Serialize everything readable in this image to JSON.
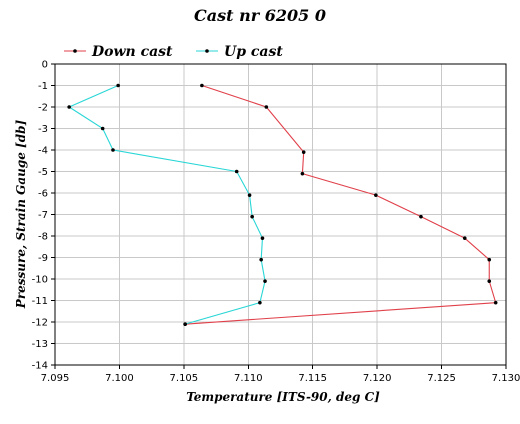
{
  "chart_data": {
    "type": "line",
    "title": "Cast nr 6205 0",
    "xlabel": "Temperature [ITS-90, deg C]",
    "ylabel": "Pressure, Strain Gauge [db]",
    "xlim": [
      7.095,
      7.13
    ],
    "ylim": [
      -14,
      0
    ],
    "x_ticks": [
      "7.095",
      "7.100",
      "7.105",
      "7.110",
      "7.115",
      "7.120",
      "7.125",
      "7.130"
    ],
    "y_ticks": [
      "0",
      "-1",
      "-2",
      "-3",
      "-4",
      "-5",
      "-6",
      "-7",
      "-8",
      "-9",
      "-10",
      "-11",
      "-12",
      "-13",
      "-14"
    ],
    "grid": true,
    "legend_position": "top",
    "series": [
      {
        "name": "Down cast",
        "color": "#e0404a",
        "points": [
          {
            "x": 7.1064,
            "y": -1
          },
          {
            "x": 7.1114,
            "y": -2
          },
          {
            "x": 7.1143,
            "y": -4.1
          },
          {
            "x": 7.1142,
            "y": -5.1
          },
          {
            "x": 7.1199,
            "y": -6.1
          },
          {
            "x": 7.1234,
            "y": -7.1
          },
          {
            "x": 7.1268,
            "y": -8.1
          },
          {
            "x": 7.1287,
            "y": -9.1
          },
          {
            "x": 7.1287,
            "y": -10.1
          },
          {
            "x": 7.1292,
            "y": -11.1
          },
          {
            "x": 7.1051,
            "y": -12.1
          }
        ]
      },
      {
        "name": "Up cast",
        "color": "#29d6d6",
        "points": [
          {
            "x": 7.0999,
            "y": -1
          },
          {
            "x": 7.0961,
            "y": -2
          },
          {
            "x": 7.0987,
            "y": -3
          },
          {
            "x": 7.0995,
            "y": -4
          },
          {
            "x": 7.1091,
            "y": -5
          },
          {
            "x": 7.1101,
            "y": -6.1
          },
          {
            "x": 7.1103,
            "y": -7.1
          },
          {
            "x": 7.1111,
            "y": -8.1
          },
          {
            "x": 7.111,
            "y": -9.1
          },
          {
            "x": 7.1113,
            "y": -10.1
          },
          {
            "x": 7.1109,
            "y": -11.1
          },
          {
            "x": 7.1051,
            "y": -12.1
          }
        ]
      }
    ]
  }
}
